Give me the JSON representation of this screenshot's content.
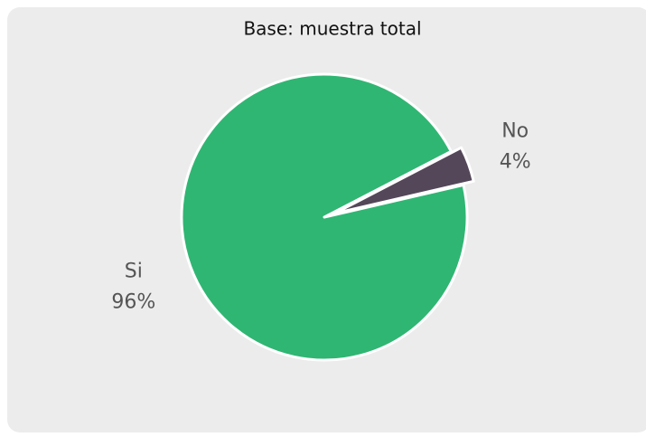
{
  "chart_data": {
    "type": "pie",
    "title": "Base: muestra total",
    "categories": [
      "Si",
      "No"
    ],
    "values": [
      96,
      4
    ],
    "value_labels": [
      "96%",
      "4%"
    ],
    "colors": [
      "#2fb673",
      "#544759"
    ],
    "exploded": [
      false,
      true
    ]
  }
}
